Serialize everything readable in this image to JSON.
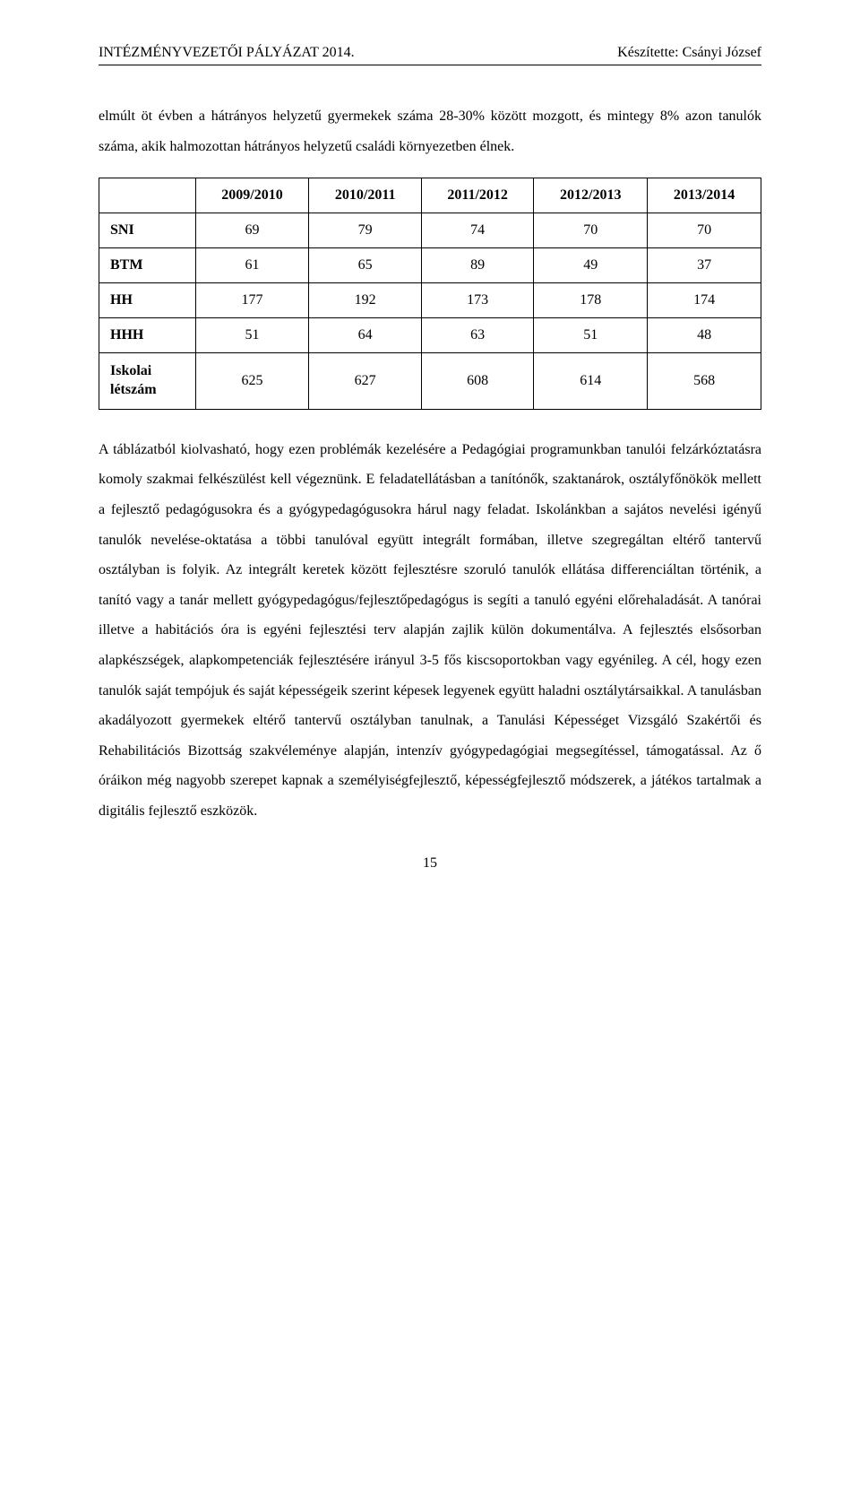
{
  "header": {
    "left": "INTÉZMÉNYVEZETŐI PÁLYÁZAT 2014.",
    "right": "Készítette: Csányi József"
  },
  "intro": "elmúlt öt évben a hátrányos helyzetű gyermekek száma 28-30% között mozgott, és mintegy 8% azon tanulók száma, akik halmozottan hátrányos helyzetű családi környezetben élnek.",
  "table": {
    "columns": [
      "",
      "2009/2010",
      "2010/2011",
      "2011/2012",
      "2012/2013",
      "2013/2014"
    ],
    "rows": [
      {
        "label": "SNI",
        "values": [
          69,
          79,
          74,
          70,
          70
        ]
      },
      {
        "label": "BTM",
        "values": [
          61,
          65,
          89,
          49,
          37
        ]
      },
      {
        "label": "HH",
        "values": [
          177,
          192,
          173,
          178,
          174
        ]
      },
      {
        "label": "HHH",
        "values": [
          51,
          64,
          63,
          51,
          48
        ]
      },
      {
        "label": "Iskolai létszám",
        "multiline": [
          "Iskolai",
          "létszám"
        ],
        "values": [
          625,
          627,
          608,
          614,
          568
        ]
      }
    ],
    "border_color": "#000000",
    "background_color": "#ffffff",
    "header_fontweight": "bold",
    "cell_fontsize": 16,
    "col_widths_pct": [
      18,
      16.4,
      16.4,
      16.4,
      16.4,
      16.4
    ]
  },
  "body": "A táblázatból kiolvasható, hogy ezen problémák kezelésére a Pedagógiai programunkban tanulói felzárkóztatásra komoly szakmai felkészülést kell végeznünk. E feladatellátásban a tanítónők, szaktanárok, osztályfőnökök mellett a fejlesztő pedagógusokra és a gyógypedagógusokra hárul nagy feladat. Iskolánkban a sajátos nevelési igényű tanulók nevelése-oktatása a többi tanulóval együtt integrált formában, illetve szegregáltan eltérő tantervű osztályban is folyik. Az integrált keretek között fejlesztésre szoruló tanulók ellátása differenciáltan történik, a tanító vagy a tanár mellett gyógypedagógus/fejlesztőpedagógus is segíti a tanuló egyéni előrehaladását. A tanórai illetve a habitációs óra is egyéni fejlesztési terv alapján zajlik külön dokumentálva. A fejlesztés elsősorban alapkészségek, alapkompetenciák fejlesztésére irányul 3-5 fős kiscsoportokban vagy egyénileg. A cél, hogy ezen tanulók saját tempójuk és saját képességeik szerint képesek legyenek együtt haladni osztálytársaikkal. A tanulásban akadályozott gyermekek eltérő tantervű osztályban tanulnak, a Tanulási Képességet Vizsgáló Szakértői és Rehabilitációs Bizottság szakvéleménye alapján, intenzív gyógypedagógiai megsegítéssel, támogatással. Az ő óráikon még nagyobb szerepet kapnak a személyiségfejlesztő, képességfejlesztő módszerek, a játékos tartalmak a digitális fejlesztő eszközök.",
  "page_number": "15",
  "colors": {
    "text": "#000000",
    "background": "#ffffff",
    "rule": "#000000"
  },
  "typography": {
    "family": "Times New Roman",
    "body_fontsize": 16,
    "line_height": 2.1
  }
}
